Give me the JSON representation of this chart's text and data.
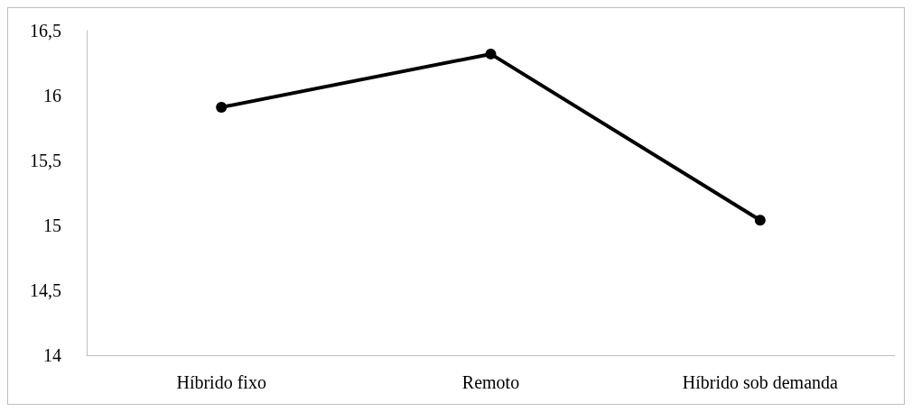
{
  "chart_data": {
    "type": "line",
    "categories": [
      "Híbrido fixo",
      "Remoto",
      "Híbrido sob demanda"
    ],
    "series": [
      {
        "color": "#000000",
        "values": [
          15.91,
          16.32,
          15.04
        ]
      }
    ],
    "ylim": [
      14,
      16.5
    ],
    "yticks": [
      14,
      {
        "value": 14.5,
        "label": "14,5"
      },
      15,
      {
        "value": 15.5,
        "label": "15,5"
      },
      16,
      {
        "value": 16.5,
        "label": "16,5"
      }
    ],
    "marker": "circle",
    "line_style": "solid"
  }
}
